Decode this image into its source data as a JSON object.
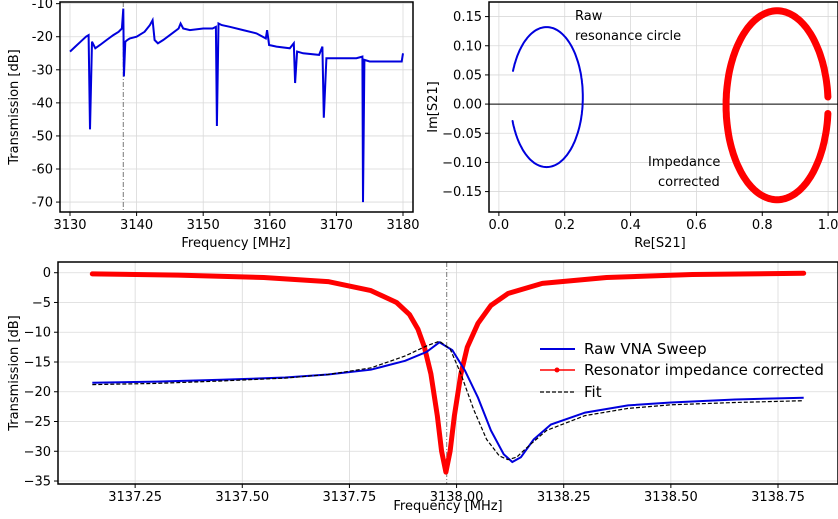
{
  "chart_data": [
    {
      "type": "line",
      "panel": "top-left",
      "xlabel": "Frequency [MHz]",
      "ylabel": "Transmission [dB]",
      "xlim": [
        3128.5,
        3181.5
      ],
      "ylim": [
        -73,
        -9.5
      ],
      "xticks": [
        3130,
        3140,
        3150,
        3160,
        3170,
        3180
      ],
      "yticks": [
        -70,
        -60,
        -50,
        -40,
        -30,
        -20,
        -10
      ],
      "grid": true,
      "vline": 3138.0,
      "series": [
        {
          "color": "#0000dd",
          "x": [
            3130,
            3130.8,
            3131.6,
            3132.4,
            3132.8,
            3133.0,
            3133.3,
            3133.8,
            3134.5,
            3135.5,
            3136.5,
            3137.3,
            3137.8,
            3138.0,
            3138.1,
            3138.3,
            3138.6,
            3139.0,
            3140.0,
            3141.2,
            3142.0,
            3142.4,
            3142.7,
            3143.2,
            3144.0,
            3145.0,
            3146.3,
            3146.6,
            3147.0,
            3148.0,
            3150.0,
            3151.4,
            3151.9,
            3152.05,
            3152.3,
            3152.8,
            3154.0,
            3156.0,
            3158.0,
            3159.4,
            3159.6,
            3159.9,
            3161.0,
            3163.0,
            3163.6,
            3163.8,
            3164.1,
            3165.0,
            3167.4,
            3167.9,
            3168.1,
            3168.5,
            3170.0,
            3173.0,
            3173.9,
            3174.0,
            3174.2,
            3175.0,
            3177.0,
            3179.8,
            3180.0
          ],
          "y": [
            -24.5,
            -23,
            -21.5,
            -20,
            -19.5,
            -48,
            -21.5,
            -23.5,
            -22.5,
            -21,
            -19.5,
            -18.5,
            -17.5,
            -11.5,
            -32,
            -21.5,
            -21,
            -20.5,
            -20.0,
            -18.5,
            -16.5,
            -15,
            -21,
            -22,
            -21,
            -19.5,
            -17.5,
            -16,
            -17.5,
            -18,
            -17.5,
            -17.5,
            -17,
            -47,
            -16,
            -16.5,
            -17,
            -18,
            -19,
            -20.5,
            -18,
            -22.5,
            -23,
            -23.5,
            -22,
            -34,
            -24.5,
            -25,
            -25.5,
            -23,
            -44.5,
            -26.5,
            -26.5,
            -26.5,
            -26,
            -70,
            -27,
            -27.5,
            -27.5,
            -27.5,
            -25
          ]
        }
      ]
    },
    {
      "type": "scatter",
      "panel": "top-right",
      "xlabel": "Re[S21]",
      "ylabel": "Im[S21]",
      "xlim": [
        -0.03,
        1.03
      ],
      "ylim": [
        -0.185,
        0.175
      ],
      "xticks": [
        "0.0",
        "0.2",
        "0.4",
        "0.6",
        "0.8",
        "1.0"
      ],
      "yticks": [
        "0.15",
        "0.10",
        "0.05",
        "0.00",
        "−0.05",
        "−0.10",
        "−0.15"
      ],
      "grid": true,
      "annotations": [
        {
          "text": "Raw",
          "x": 0.22,
          "y": 0.163
        },
        {
          "text": "resonance circle",
          "x": 0.22,
          "y": 0.132
        },
        {
          "text": "Impedance",
          "x": 0.45,
          "y": -0.09
        },
        {
          "text": "corrected",
          "x": 0.47,
          "y": -0.123
        }
      ],
      "series": [
        {
          "color": "#0000dd",
          "center": [
            0.145,
            0.012
          ],
          "radius_x": 0.11,
          "radius_y": 0.12,
          "gap_deg": [
            158,
            200
          ]
        },
        {
          "color": "#ff0000",
          "center": [
            0.845,
            -0.002
          ],
          "radius_x": 0.155,
          "radius_y": 0.162,
          "gap_deg": [
            -5,
            5
          ]
        }
      ]
    },
    {
      "type": "line",
      "panel": "bottom",
      "xlabel": "Frequency [MHz]",
      "ylabel": "Transmission [dB]",
      "xlim": [
        3137.07,
        3138.89
      ],
      "ylim": [
        -35.5,
        1.8
      ],
      "xticks": [
        "3137.25",
        "3137.50",
        "3137.75",
        "3138.00",
        "3138.25",
        "3138.50",
        "3138.75"
      ],
      "yticks": [
        "0",
        "−5",
        "−10",
        "−15",
        "−20",
        "−25",
        "−30",
        "−35"
      ],
      "grid": true,
      "vline": 3137.977,
      "legend": {
        "placement": "center-right",
        "entries": [
          "Raw VNA Sweep",
          "Resonator impedance corrected",
          "Fit"
        ]
      },
      "series": [
        {
          "name": "Raw VNA Sweep",
          "color": "#0000dd",
          "x": [
            3137.15,
            3137.3,
            3137.45,
            3137.6,
            3137.7,
            3137.8,
            3137.88,
            3137.93,
            3137.96,
            3137.99,
            3138.02,
            3138.05,
            3138.08,
            3138.11,
            3138.13,
            3138.15,
            3138.18,
            3138.22,
            3138.3,
            3138.4,
            3138.5,
            3138.65,
            3138.81
          ],
          "y": [
            -18.5,
            -18.3,
            -18,
            -17.6,
            -17.1,
            -16.3,
            -14.8,
            -13.3,
            -11.7,
            -13.0,
            -16.5,
            -21.0,
            -26.5,
            -30.5,
            -31.8,
            -31.0,
            -28.0,
            -25.5,
            -23.5,
            -22.3,
            -21.8,
            -21.3,
            -21.0
          ]
        },
        {
          "name": "Resonator impedance corrected",
          "color": "#ff0000",
          "x": [
            3137.15,
            3137.35,
            3137.55,
            3137.7,
            3137.8,
            3137.86,
            3137.89,
            3137.91,
            3137.925,
            3137.94,
            3137.955,
            3137.965,
            3137.975,
            3137.985,
            3137.995,
            3138.01,
            3138.025,
            3138.05,
            3138.08,
            3138.12,
            3138.2,
            3138.35,
            3138.55,
            3138.81
          ],
          "y": [
            -0.2,
            -0.4,
            -0.8,
            -1.5,
            -3.0,
            -5.0,
            -7.0,
            -9.5,
            -12.5,
            -17.0,
            -24.0,
            -30.0,
            -33.5,
            -30.0,
            -24.0,
            -17.0,
            -12.5,
            -8.5,
            -5.5,
            -3.5,
            -1.8,
            -0.8,
            -0.3,
            -0.1
          ]
        },
        {
          "name": "Fit",
          "color": "#000000",
          "dashed": true,
          "x": [
            3137.15,
            3137.3,
            3137.45,
            3137.6,
            3137.7,
            3137.8,
            3137.88,
            3137.93,
            3137.96,
            3137.985,
            3138.01,
            3138.04,
            3138.07,
            3138.1,
            3138.12,
            3138.14,
            3138.17,
            3138.21,
            3138.3,
            3138.4,
            3138.5,
            3138.65,
            3138.81
          ],
          "y": [
            -18.8,
            -18.6,
            -18.2,
            -17.7,
            -17.1,
            -16.0,
            -14.0,
            -12.3,
            -11.5,
            -12.8,
            -17.0,
            -23.0,
            -28.0,
            -30.8,
            -31.4,
            -31.0,
            -29.0,
            -26.5,
            -24.0,
            -22.8,
            -22.2,
            -21.8,
            -21.5
          ]
        }
      ]
    }
  ]
}
